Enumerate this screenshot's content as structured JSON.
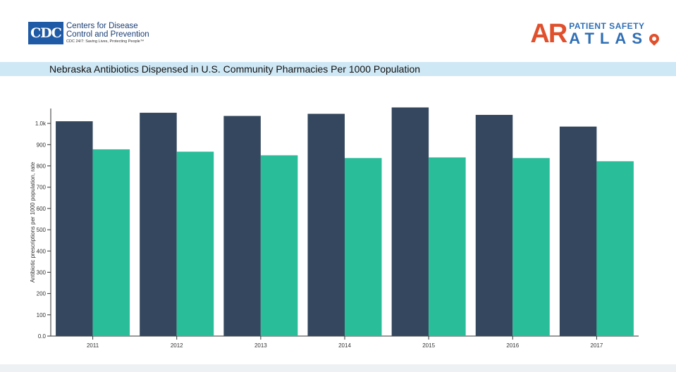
{
  "header": {
    "cdc_logo": {
      "mark": "CDC",
      "line1": "Centers for Disease",
      "line2": "Control and Prevention",
      "line3": "CDC 24/7: Saving Lives, Protecting People™"
    },
    "ar_logo": {
      "mark": "AR",
      "top": "PATIENT SAFETY",
      "bottom": "ATLAS",
      "pin_icon": "map-pin-icon"
    }
  },
  "title": "Nebraska Antibiotics Dispensed in U.S. Community Pharmacies Per 1000 Population",
  "chart_data": {
    "type": "bar",
    "categories": [
      "2011",
      "2012",
      "2013",
      "2014",
      "2015",
      "2016",
      "2017"
    ],
    "series": [
      {
        "values": [
          1010,
          1050,
          1035,
          1045,
          1075,
          1040,
          985
        ],
        "color": "#34475e"
      },
      {
        "values": [
          878,
          867,
          850,
          837,
          840,
          837,
          822
        ],
        "color": "#29bd9a"
      }
    ],
    "yticks": [
      "0.0",
      "100",
      "200",
      "300",
      "400",
      "500",
      "600",
      "700",
      "800",
      "900",
      "1.0k"
    ],
    "ytick_values": [
      0,
      100,
      200,
      300,
      400,
      500,
      600,
      700,
      800,
      900,
      1000
    ],
    "ylabel": "Antibiotic prescriptions per 1000 population, rate",
    "xlabel": "",
    "ylim": [
      0,
      1070
    ],
    "grid": false
  }
}
